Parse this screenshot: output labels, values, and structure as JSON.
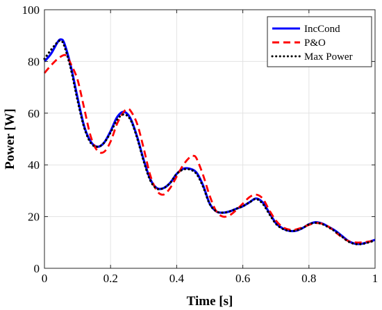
{
  "chart_data": {
    "type": "line",
    "xlabel": "Time [s]",
    "ylabel": "Power [W]",
    "xlim": [
      0,
      1
    ],
    "ylim": [
      0,
      100
    ],
    "xticks": [
      0,
      0.2,
      0.4,
      0.6,
      0.8,
      1
    ],
    "xtick_labels": [
      "0",
      "0.2",
      "0.4",
      "0.6",
      "0.8",
      "1"
    ],
    "yticks": [
      0,
      20,
      40,
      60,
      80,
      100
    ],
    "ytick_labels": [
      "0",
      "20",
      "40",
      "60",
      "80",
      "100"
    ],
    "grid": true,
    "legend_position": "top-right",
    "series": [
      {
        "name": "IncCond",
        "color": "#0000ff",
        "style": "solid",
        "x": [
          0,
          0.02,
          0.04,
          0.05,
          0.06,
          0.08,
          0.1,
          0.12,
          0.14,
          0.16,
          0.18,
          0.2,
          0.22,
          0.24,
          0.26,
          0.28,
          0.3,
          0.32,
          0.34,
          0.36,
          0.38,
          0.4,
          0.42,
          0.44,
          0.46,
          0.48,
          0.5,
          0.52,
          0.54,
          0.56,
          0.58,
          0.6,
          0.62,
          0.64,
          0.66,
          0.68,
          0.7,
          0.72,
          0.74,
          0.76,
          0.78,
          0.8,
          0.82,
          0.84,
          0.86,
          0.88,
          0.9,
          0.92,
          0.94,
          0.96,
          0.98,
          1.0
        ],
        "y": [
          80,
          83,
          87.5,
          88.5,
          87,
          78,
          66,
          55,
          49,
          47,
          48.5,
          53,
          58.5,
          60.5,
          58,
          51,
          42,
          34.5,
          31,
          31,
          33,
          36.5,
          38.5,
          38.5,
          37,
          32,
          25,
          22,
          21.5,
          22,
          23,
          24,
          25.5,
          27,
          25.5,
          21.5,
          17.5,
          15.5,
          14.5,
          14.5,
          15.5,
          17,
          17.8,
          17.3,
          16,
          14.5,
          12.5,
          10.5,
          9.5,
          9.5,
          10.2,
          11
        ]
      },
      {
        "name": "P&O",
        "color": "#ff0000",
        "style": "dashed",
        "x": [
          0,
          0.02,
          0.04,
          0.06,
          0.07,
          0.08,
          0.1,
          0.12,
          0.14,
          0.16,
          0.18,
          0.2,
          0.22,
          0.24,
          0.25,
          0.26,
          0.28,
          0.3,
          0.32,
          0.34,
          0.36,
          0.38,
          0.4,
          0.42,
          0.44,
          0.45,
          0.46,
          0.48,
          0.5,
          0.52,
          0.54,
          0.56,
          0.58,
          0.6,
          0.62,
          0.64,
          0.66,
          0.68,
          0.7,
          0.72,
          0.74,
          0.76,
          0.78,
          0.8,
          0.82,
          0.84,
          0.86,
          0.88,
          0.9,
          0.92,
          0.94,
          0.96,
          0.98,
          1.0
        ],
        "y": [
          75.5,
          78.5,
          81,
          82.5,
          81.5,
          79,
          73,
          62,
          51,
          45.5,
          45,
          49,
          56,
          60.5,
          61.5,
          61,
          56,
          46.5,
          36,
          30,
          28.5,
          31,
          35.5,
          40,
          43,
          43.5,
          42.5,
          36,
          28,
          22,
          20,
          20.5,
          22.5,
          25,
          27.5,
          28.5,
          27,
          22.5,
          18.5,
          16,
          15,
          15,
          15.8,
          16.8,
          17.5,
          17.2,
          16,
          14,
          12,
          10.5,
          10,
          10,
          10.3,
          10.8
        ]
      },
      {
        "name": "Max Power",
        "color": "#000000",
        "style": "dotted",
        "x": [
          0,
          0.02,
          0.04,
          0.05,
          0.06,
          0.08,
          0.1,
          0.12,
          0.14,
          0.16,
          0.18,
          0.2,
          0.22,
          0.24,
          0.26,
          0.28,
          0.3,
          0.32,
          0.34,
          0.36,
          0.38,
          0.4,
          0.42,
          0.44,
          0.46,
          0.48,
          0.5,
          0.52,
          0.54,
          0.56,
          0.58,
          0.6,
          0.62,
          0.64,
          0.66,
          0.68,
          0.7,
          0.72,
          0.74,
          0.76,
          0.78,
          0.8,
          0.82,
          0.84,
          0.86,
          0.88,
          0.9,
          0.92,
          0.94,
          0.96,
          0.98,
          1.0
        ],
        "y": [
          81,
          84.5,
          87.5,
          88,
          86,
          77,
          65,
          54.5,
          48.5,
          47,
          48.5,
          52.5,
          57.5,
          59.5,
          57.5,
          50.5,
          41.5,
          34,
          30.8,
          31,
          33,
          36.5,
          38.2,
          38.2,
          36.5,
          31.5,
          24.8,
          22,
          21.5,
          22,
          23,
          24,
          25.5,
          26.8,
          25,
          21,
          17.2,
          15.3,
          14.5,
          14.6,
          15.5,
          17,
          17.6,
          17.1,
          15.8,
          14.2,
          12.2,
          10.3,
          9.4,
          9.4,
          10,
          10.8
        ]
      }
    ]
  }
}
